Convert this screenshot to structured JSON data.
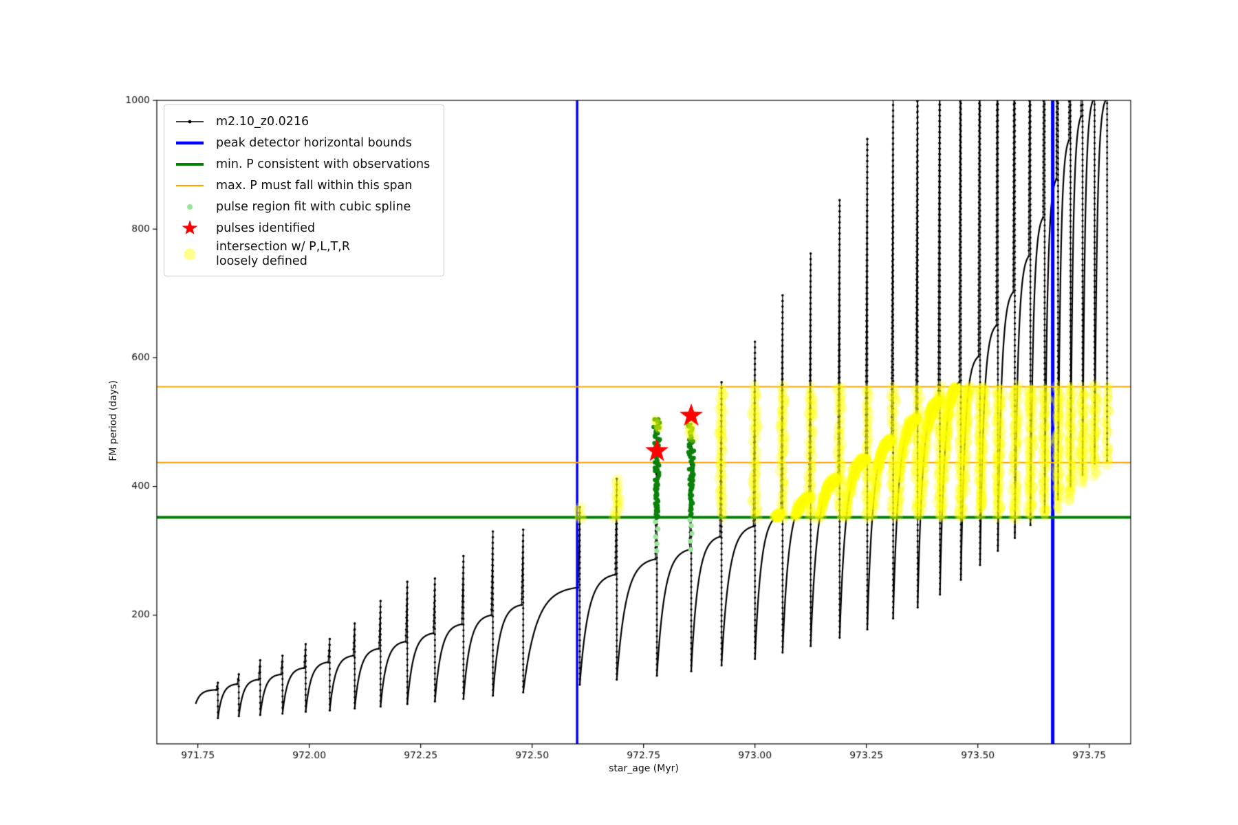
{
  "chart_data": {
    "type": "line",
    "title": "",
    "xlabel": "star_age (Myr)",
    "ylabel": "FM period (days)",
    "xlim": [
      971.658,
      973.843
    ],
    "ylim": [
      0,
      1000
    ],
    "xticks": [
      971.75,
      972.0,
      972.25,
      972.5,
      972.75,
      973.0,
      973.25,
      973.5,
      973.75
    ],
    "yticks": [
      200,
      400,
      600,
      800,
      1000
    ],
    "grid": false,
    "legend_position": "upper left",
    "series_label": "m2.10_z0.0216",
    "peak_detector_bounds_x": [
      972.601,
      973.668
    ],
    "min_P_line_y": 352,
    "max_P_span_y": [
      437,
      555
    ],
    "intersection_band": {
      "y_min": 352,
      "y_max": 555,
      "t_start": 972.595
    },
    "pulse_cycles_key": "[t_start, t_spike, y_start_min, y_shoulder, y_spike_peak]",
    "pulse_cycles": [
      [
        971.745,
        971.795,
        62,
        84,
        95
      ],
      [
        971.795,
        971.842,
        40,
        93,
        108
      ],
      [
        971.842,
        971.89,
        43,
        100,
        130
      ],
      [
        971.89,
        971.94,
        45,
        108,
        137
      ],
      [
        971.94,
        971.992,
        47,
        118,
        155
      ],
      [
        971.992,
        972.046,
        50,
        127,
        163
      ],
      [
        972.046,
        972.102,
        52,
        137,
        187
      ],
      [
        972.102,
        972.16,
        55,
        148,
        222
      ],
      [
        972.16,
        972.22,
        58,
        159,
        252
      ],
      [
        972.22,
        972.282,
        62,
        172,
        257
      ],
      [
        972.282,
        972.346,
        66,
        186,
        292
      ],
      [
        972.346,
        972.412,
        70,
        200,
        330
      ],
      [
        972.412,
        972.48,
        75,
        216,
        333
      ],
      [
        972.48,
        972.607,
        80,
        243,
        368
      ],
      [
        972.607,
        972.69,
        92,
        263,
        412
      ],
      [
        972.69,
        972.78,
        100,
        287,
        490
      ],
      [
        972.78,
        972.857,
        106,
        302,
        497
      ],
      [
        972.857,
        972.925,
        113,
        322,
        562
      ],
      [
        972.925,
        973.0,
        122,
        338,
        625
      ],
      [
        973.0,
        973.062,
        132,
        357,
        697
      ],
      [
        973.062,
        973.125,
        142,
        383,
        762
      ],
      [
        973.125,
        973.19,
        152,
        413,
        845
      ],
      [
        973.19,
        973.252,
        165,
        443,
        940
      ],
      [
        973.252,
        973.31,
        178,
        473,
        1010
      ],
      [
        973.31,
        973.365,
        195,
        505,
        1120
      ],
      [
        973.365,
        973.415,
        212,
        532,
        1250
      ],
      [
        973.415,
        973.462,
        232,
        562,
        1400
      ],
      [
        973.462,
        973.505,
        255,
        602,
        1500
      ],
      [
        973.505,
        973.545,
        278,
        650,
        1500
      ],
      [
        973.545,
        973.583,
        300,
        702,
        1500
      ],
      [
        973.583,
        973.618,
        320,
        758,
        1500
      ],
      [
        973.618,
        973.65,
        340,
        818,
        1500
      ],
      [
        973.65,
        973.68,
        360,
        878,
        1500
      ],
      [
        973.68,
        973.708,
        380,
        938,
        1500
      ],
      [
        973.708,
        973.735,
        400,
        975,
        1500
      ],
      [
        973.735,
        973.762,
        418,
        1000,
        1500
      ],
      [
        973.762,
        973.79,
        436,
        1000,
        1500
      ]
    ],
    "spline_cycle_indices": [
      15,
      16
    ],
    "spline_regions": [
      {
        "x": 972.78,
        "y_min": 352,
        "y_max": 505
      },
      {
        "x": 972.857,
        "y_min": 352,
        "y_max": 497
      }
    ],
    "spline_sparse_points": [
      {
        "x": 972.78,
        "ys": [
          300,
          311,
          322,
          334,
          345
        ]
      },
      {
        "x": 972.857,
        "ys": [
          302,
          315,
          327,
          339,
          348
        ]
      }
    ],
    "pulses_identified": [
      {
        "x": 972.78,
        "y": 455
      },
      {
        "x": 972.857,
        "y": 510
      }
    ],
    "extra_intersections": [
      {
        "x": 972.78,
        "y0": 490,
        "y1": 506
      },
      {
        "x": 972.857,
        "y0": 476,
        "y1": 502
      }
    ],
    "colors": {
      "series": "#000000",
      "bounds": "#0000ff",
      "min_line": "#008000",
      "span_line": "#ffa500",
      "spline": "#0a820a",
      "spline_light": "#98e698",
      "pulse_star": "#ff0000",
      "intersection": "#ffff00"
    },
    "legend": {
      "entries": [
        {
          "label": "m2.10_z0.0216"
        },
        {
          "label": "peak detector horizontal bounds"
        },
        {
          "label": "min. P consistent with observations"
        },
        {
          "label": "max. P must fall within this span"
        },
        {
          "label": "pulse region fit with cubic spline"
        },
        {
          "label": "pulses identified"
        },
        {
          "label": "intersection w/ P,L,T,R\nloosely defined"
        }
      ]
    }
  }
}
